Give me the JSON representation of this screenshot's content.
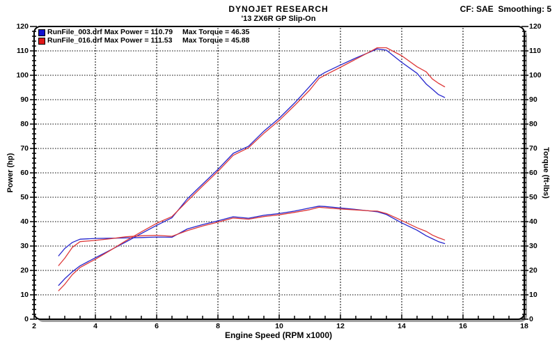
{
  "header": {
    "title": "DYNOJET RESEARCH",
    "subtitle": "'13 ZX6R GP Slip-On",
    "correction": "CF: SAE  Smoothing: 5"
  },
  "legend": {
    "entries": [
      {
        "label": "RunFile_003.drf Max Power = 110.79",
        "torque_label": "Max Torque = 46.35",
        "color": "#1010cf"
      },
      {
        "label": "RunFile_016.drf Max Power = 111.53",
        "torque_label": "Max Torque = 45.88",
        "color": "#e01818"
      }
    ]
  },
  "chart_data": {
    "type": "line",
    "title": "DYNOJET RESEARCH",
    "subtitle": "'13 ZX6R GP Slip-On",
    "correction_factor": "SAE",
    "smoothing": 5,
    "xlabel": "Engine Speed (RPM x1000)",
    "ylabel_left": "Power (hp)",
    "ylabel_right": "Torque (ft-lbs)",
    "xlim": [
      2,
      18
    ],
    "ylim": [
      0,
      120
    ],
    "x_major_ticks": [
      2,
      4,
      6,
      8,
      10,
      12,
      14,
      16,
      18
    ],
    "y_major_ticks": [
      0,
      10,
      20,
      30,
      40,
      50,
      60,
      70,
      80,
      90,
      100,
      110,
      120
    ],
    "x_minor_step": 0.5,
    "y_minor_step": 2,
    "grid": "dotted",
    "legend_position": "top-left",
    "x": [
      2.8,
      3.0,
      3.25,
      3.5,
      4.0,
      4.5,
      5.0,
      5.5,
      6.0,
      6.5,
      7.0,
      7.5,
      8.0,
      8.5,
      9.0,
      9.5,
      10.0,
      10.5,
      11.0,
      11.3,
      11.5,
      12.0,
      12.5,
      13.0,
      13.2,
      13.5,
      14.0,
      14.5,
      14.8,
      15.0,
      15.2,
      15.4
    ],
    "series": [
      {
        "name": "RunFile_003.drf",
        "color": "#2424cc",
        "max_power": 110.79,
        "max_torque": 46.35,
        "power_hp": [
          13.9,
          16.6,
          19.5,
          21.9,
          25.2,
          28.4,
          31.7,
          35.1,
          38.5,
          41.6,
          49.3,
          55.4,
          61.4,
          68.0,
          70.9,
          77.1,
          82.4,
          88.6,
          95.5,
          99.7,
          101.2,
          104.2,
          107.1,
          109.7,
          110.8,
          110.3,
          105.3,
          100.8,
          96.4,
          94.3,
          92.1,
          90.9
        ],
        "torque_ftlbs": [
          26.0,
          29.0,
          31.5,
          32.8,
          33.1,
          33.2,
          33.3,
          33.5,
          33.7,
          33.6,
          37.0,
          38.8,
          40.3,
          42.0,
          41.4,
          42.6,
          43.3,
          44.3,
          45.6,
          46.35,
          46.2,
          45.6,
          45.0,
          44.3,
          44.05,
          42.9,
          39.5,
          36.5,
          34.2,
          33.0,
          31.8,
          31.0
        ]
      },
      {
        "name": "RunFile_016.drf",
        "color": "#dd3838",
        "max_power": 111.53,
        "max_torque": 45.88,
        "power_hp": [
          11.7,
          14.3,
          18.3,
          21.2,
          24.6,
          28.3,
          32.2,
          35.8,
          39.3,
          42.1,
          48.4,
          54.6,
          60.6,
          67.2,
          70.3,
          76.2,
          81.5,
          87.6,
          94.0,
          98.7,
          100.1,
          103.3,
          106.6,
          109.9,
          111.3,
          111.3,
          108.0,
          103.5,
          101.4,
          98.5,
          96.7,
          95.3
        ],
        "torque_ftlbs": [
          22.0,
          25.0,
          29.5,
          31.8,
          32.3,
          33.0,
          33.8,
          34.2,
          34.4,
          34.0,
          36.3,
          38.2,
          39.8,
          41.5,
          41.0,
          42.1,
          42.8,
          43.8,
          44.9,
          45.88,
          45.7,
          45.2,
          44.8,
          44.4,
          44.3,
          43.3,
          40.5,
          37.5,
          36.0,
          34.5,
          33.4,
          32.5
        ]
      }
    ]
  }
}
